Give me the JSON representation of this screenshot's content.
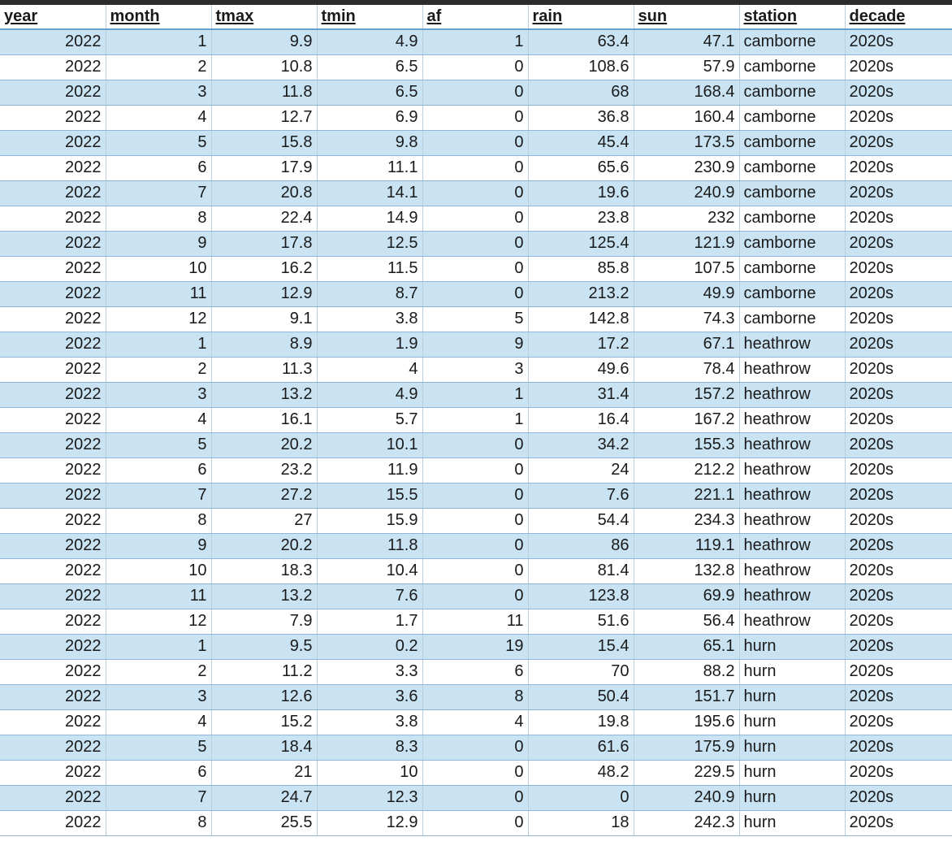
{
  "sheet": {
    "columns": [
      "year",
      "month",
      "tmax",
      "tmin",
      "af",
      "rain",
      "sun",
      "station",
      "decade"
    ],
    "rows": [
      [
        "2022",
        "1",
        "9.9",
        "4.9",
        "1",
        "63.4",
        "47.1",
        "camborne",
        "2020s"
      ],
      [
        "2022",
        "2",
        "10.8",
        "6.5",
        "0",
        "108.6",
        "57.9",
        "camborne",
        "2020s"
      ],
      [
        "2022",
        "3",
        "11.8",
        "6.5",
        "0",
        "68",
        "168.4",
        "camborne",
        "2020s"
      ],
      [
        "2022",
        "4",
        "12.7",
        "6.9",
        "0",
        "36.8",
        "160.4",
        "camborne",
        "2020s"
      ],
      [
        "2022",
        "5",
        "15.8",
        "9.8",
        "0",
        "45.4",
        "173.5",
        "camborne",
        "2020s"
      ],
      [
        "2022",
        "6",
        "17.9",
        "11.1",
        "0",
        "65.6",
        "230.9",
        "camborne",
        "2020s"
      ],
      [
        "2022",
        "7",
        "20.8",
        "14.1",
        "0",
        "19.6",
        "240.9",
        "camborne",
        "2020s"
      ],
      [
        "2022",
        "8",
        "22.4",
        "14.9",
        "0",
        "23.8",
        "232",
        "camborne",
        "2020s"
      ],
      [
        "2022",
        "9",
        "17.8",
        "12.5",
        "0",
        "125.4",
        "121.9",
        "camborne",
        "2020s"
      ],
      [
        "2022",
        "10",
        "16.2",
        "11.5",
        "0",
        "85.8",
        "107.5",
        "camborne",
        "2020s"
      ],
      [
        "2022",
        "11",
        "12.9",
        "8.7",
        "0",
        "213.2",
        "49.9",
        "camborne",
        "2020s"
      ],
      [
        "2022",
        "12",
        "9.1",
        "3.8",
        "5",
        "142.8",
        "74.3",
        "camborne",
        "2020s"
      ],
      [
        "2022",
        "1",
        "8.9",
        "1.9",
        "9",
        "17.2",
        "67.1",
        "heathrow",
        "2020s"
      ],
      [
        "2022",
        "2",
        "11.3",
        "4",
        "3",
        "49.6",
        "78.4",
        "heathrow",
        "2020s"
      ],
      [
        "2022",
        "3",
        "13.2",
        "4.9",
        "1",
        "31.4",
        "157.2",
        "heathrow",
        "2020s"
      ],
      [
        "2022",
        "4",
        "16.1",
        "5.7",
        "1",
        "16.4",
        "167.2",
        "heathrow",
        "2020s"
      ],
      [
        "2022",
        "5",
        "20.2",
        "10.1",
        "0",
        "34.2",
        "155.3",
        "heathrow",
        "2020s"
      ],
      [
        "2022",
        "6",
        "23.2",
        "11.9",
        "0",
        "24",
        "212.2",
        "heathrow",
        "2020s"
      ],
      [
        "2022",
        "7",
        "27.2",
        "15.5",
        "0",
        "7.6",
        "221.1",
        "heathrow",
        "2020s"
      ],
      [
        "2022",
        "8",
        "27",
        "15.9",
        "0",
        "54.4",
        "234.3",
        "heathrow",
        "2020s"
      ],
      [
        "2022",
        "9",
        "20.2",
        "11.8",
        "0",
        "86",
        "119.1",
        "heathrow",
        "2020s"
      ],
      [
        "2022",
        "10",
        "18.3",
        "10.4",
        "0",
        "81.4",
        "132.8",
        "heathrow",
        "2020s"
      ],
      [
        "2022",
        "11",
        "13.2",
        "7.6",
        "0",
        "123.8",
        "69.9",
        "heathrow",
        "2020s"
      ],
      [
        "2022",
        "12",
        "7.9",
        "1.7",
        "11",
        "51.6",
        "56.4",
        "heathrow",
        "2020s"
      ],
      [
        "2022",
        "1",
        "9.5",
        "0.2",
        "19",
        "15.4",
        "65.1",
        "hurn",
        "2020s"
      ],
      [
        "2022",
        "2",
        "11.2",
        "3.3",
        "6",
        "70",
        "88.2",
        "hurn",
        "2020s"
      ],
      [
        "2022",
        "3",
        "12.6",
        "3.6",
        "8",
        "50.4",
        "151.7",
        "hurn",
        "2020s"
      ],
      [
        "2022",
        "4",
        "15.2",
        "3.8",
        "4",
        "19.8",
        "195.6",
        "hurn",
        "2020s"
      ],
      [
        "2022",
        "5",
        "18.4",
        "8.3",
        "0",
        "61.6",
        "175.9",
        "hurn",
        "2020s"
      ],
      [
        "2022",
        "6",
        "21",
        "10",
        "0",
        "48.2",
        "229.5",
        "hurn",
        "2020s"
      ],
      [
        "2022",
        "7",
        "24.7",
        "12.3",
        "0",
        "0",
        "240.9",
        "hurn",
        "2020s"
      ],
      [
        "2022",
        "8",
        "25.5",
        "12.9",
        "0",
        "18",
        "242.3",
        "hurn",
        "2020s"
      ]
    ]
  },
  "colors": {
    "band": "#c9e3f2",
    "grid": "#8fb6d6",
    "topbar": "#2b2b2b"
  }
}
